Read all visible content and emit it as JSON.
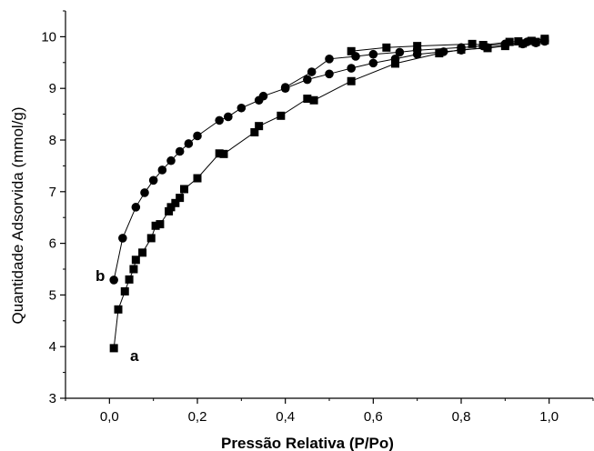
{
  "chart_data": {
    "type": "scatter",
    "title": "",
    "xlabel": "Pressão Relativa (P/Po)",
    "ylabel": "Quantidade Adsorvida (mmol/g)",
    "xlim": [
      -0.1,
      1.1
    ],
    "ylim": [
      3,
      10.5
    ],
    "xticks": [
      0.0,
      0.2,
      0.4,
      0.6,
      0.8,
      1.0
    ],
    "xtick_labels": [
      "0,0",
      "0,2",
      "0,4",
      "0,6",
      "0,8",
      "1,0"
    ],
    "yticks": [
      3,
      4,
      5,
      6,
      7,
      8,
      9,
      10
    ],
    "ytick_labels": [
      "3",
      "4",
      "5",
      "6",
      "7",
      "8",
      "9",
      "10"
    ],
    "grid": false,
    "series": [
      {
        "marker": "square",
        "label": "a",
        "adsorption": [
          [
            0.01,
            3.97
          ],
          [
            0.02,
            4.72
          ],
          [
            0.035,
            5.07
          ],
          [
            0.045,
            5.3
          ],
          [
            0.055,
            5.5
          ],
          [
            0.06,
            5.68
          ],
          [
            0.075,
            5.82
          ],
          [
            0.095,
            6.1
          ],
          [
            0.105,
            6.34
          ],
          [
            0.115,
            6.37
          ],
          [
            0.135,
            6.62
          ],
          [
            0.14,
            6.7
          ],
          [
            0.15,
            6.78
          ],
          [
            0.16,
            6.88
          ],
          [
            0.17,
            7.05
          ],
          [
            0.2,
            7.26
          ],
          [
            0.25,
            7.74
          ],
          [
            0.26,
            7.73
          ],
          [
            0.33,
            8.15
          ],
          [
            0.34,
            8.27
          ],
          [
            0.39,
            8.47
          ],
          [
            0.45,
            8.8
          ],
          [
            0.465,
            8.77
          ],
          [
            0.55,
            9.14
          ],
          [
            0.65,
            9.48
          ],
          [
            0.75,
            9.68
          ],
          [
            0.8,
            9.75
          ],
          [
            0.86,
            9.78
          ],
          [
            0.9,
            9.82
          ],
          [
            0.94,
            9.87
          ],
          [
            0.97,
            9.9
          ],
          [
            0.99,
            9.93
          ]
        ],
        "desorption": [
          [
            0.99,
            9.96
          ],
          [
            0.96,
            9.92
          ],
          [
            0.93,
            9.91
          ],
          [
            0.91,
            9.9
          ],
          [
            0.85,
            9.84
          ],
          [
            0.825,
            9.86
          ],
          [
            0.7,
            9.82
          ],
          [
            0.63,
            9.79
          ],
          [
            0.55,
            9.72
          ]
        ]
      },
      {
        "marker": "circle",
        "label": "b",
        "adsorption": [
          [
            0.01,
            5.29
          ],
          [
            0.03,
            6.1
          ],
          [
            0.06,
            6.7
          ],
          [
            0.08,
            6.98
          ],
          [
            0.1,
            7.22
          ],
          [
            0.12,
            7.42
          ],
          [
            0.14,
            7.6
          ],
          [
            0.16,
            7.78
          ],
          [
            0.18,
            7.93
          ],
          [
            0.2,
            8.08
          ],
          [
            0.25,
            8.38
          ],
          [
            0.27,
            8.45
          ],
          [
            0.3,
            8.62
          ],
          [
            0.34,
            8.77
          ],
          [
            0.35,
            8.85
          ],
          [
            0.4,
            9.0
          ],
          [
            0.45,
            9.17
          ],
          [
            0.5,
            9.28
          ],
          [
            0.55,
            9.39
          ],
          [
            0.6,
            9.49
          ],
          [
            0.65,
            9.57
          ],
          [
            0.7,
            9.66
          ],
          [
            0.76,
            9.71
          ],
          [
            0.8,
            9.74
          ],
          [
            0.86,
            9.79
          ],
          [
            0.9,
            9.83
          ],
          [
            0.94,
            9.86
          ],
          [
            0.97,
            9.88
          ],
          [
            0.99,
            9.91
          ]
        ],
        "desorption": [
          [
            0.99,
            9.93
          ],
          [
            0.95,
            9.9
          ],
          [
            0.9,
            9.86
          ],
          [
            0.85,
            9.82
          ],
          [
            0.8,
            9.79
          ],
          [
            0.7,
            9.74
          ],
          [
            0.66,
            9.7
          ],
          [
            0.6,
            9.66
          ],
          [
            0.56,
            9.62
          ],
          [
            0.5,
            9.57
          ],
          [
            0.46,
            9.32
          ],
          [
            0.4,
            9.02
          ]
        ]
      }
    ],
    "annotations": [
      {
        "text": "a",
        "near_series": "a"
      },
      {
        "text": "b",
        "near_series": "b"
      }
    ]
  }
}
